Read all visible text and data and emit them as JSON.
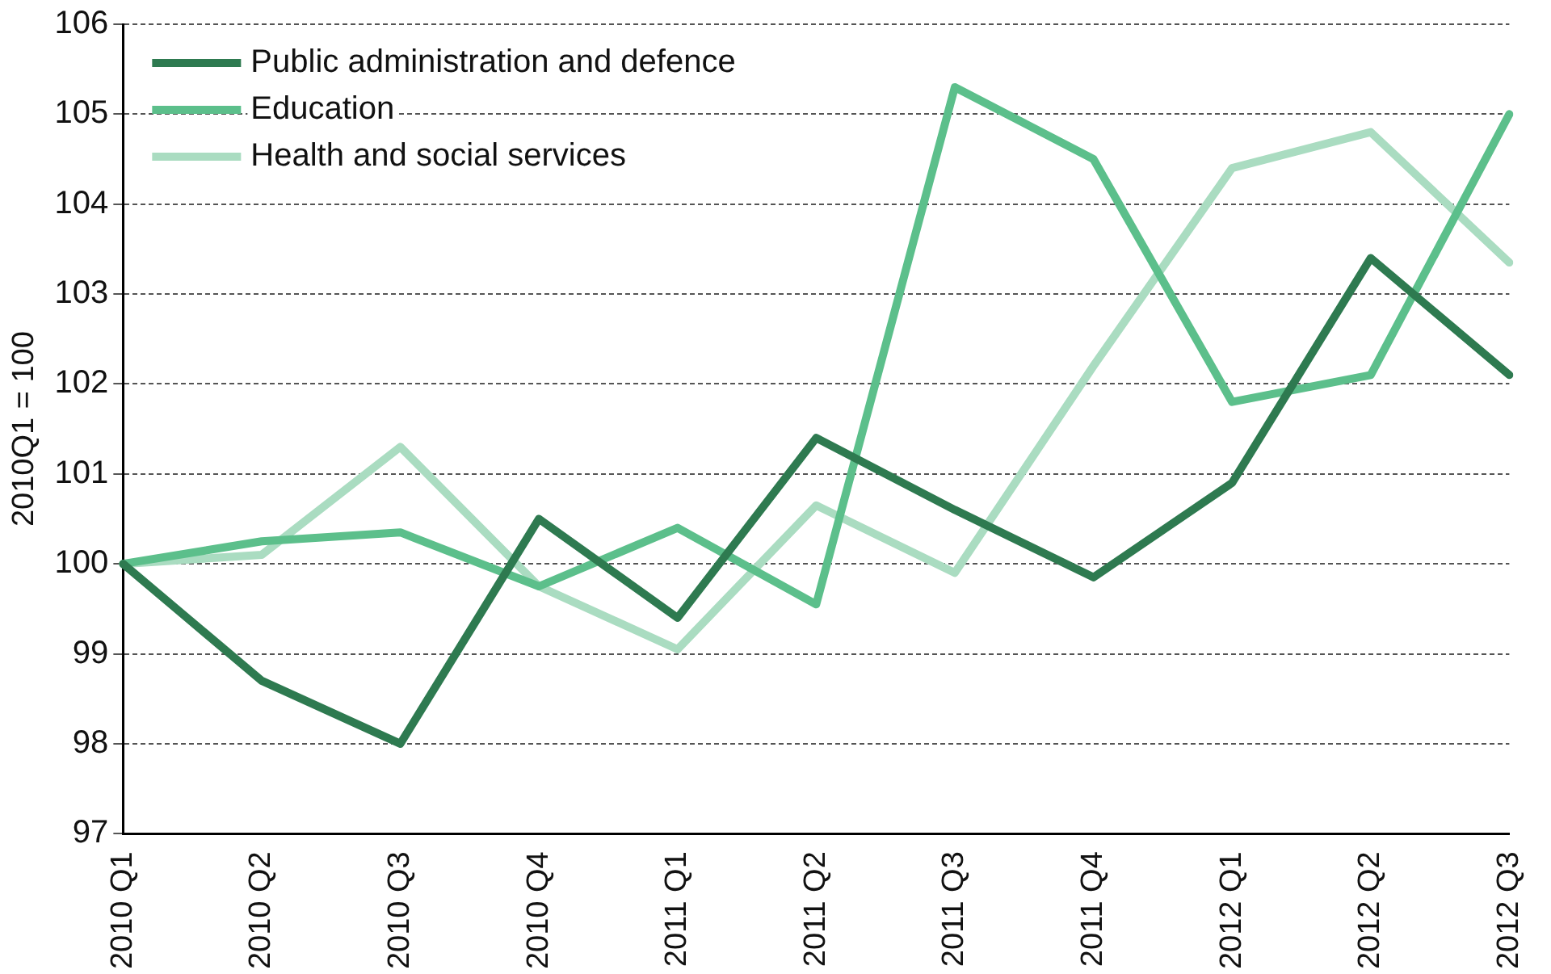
{
  "chart_data": {
    "type": "line",
    "ylabel": "2010Q1 = 100",
    "categories": [
      "2010 Q1",
      "2010 Q2",
      "2010 Q3",
      "2010 Q4",
      "2011 Q1",
      "2011 Q2",
      "2011 Q3",
      "2011 Q4",
      "2012 Q1",
      "2012 Q2",
      "2012 Q3"
    ],
    "series": [
      {
        "name": "Public administration and defence",
        "color": "#2e7a50",
        "values": [
          100,
          98.7,
          98.0,
          100.5,
          99.4,
          101.4,
          100.6,
          99.85,
          100.9,
          103.4,
          102.1
        ]
      },
      {
        "name": "Education",
        "color": "#5cbf8b",
        "values": [
          100,
          100.25,
          100.35,
          99.75,
          100.4,
          99.55,
          105.3,
          104.5,
          101.8,
          102.1,
          105.0
        ]
      },
      {
        "name": "Health and social services",
        "color": "#aadcc1",
        "values": [
          100,
          100.1,
          101.3,
          99.75,
          99.05,
          100.65,
          99.9,
          102.2,
          104.4,
          104.8,
          103.35
        ]
      }
    ],
    "ylim": [
      97,
      106
    ],
    "yticks": [
      97,
      98,
      99,
      100,
      101,
      102,
      103,
      104,
      105,
      106
    ],
    "grid": "y",
    "legend": "top left",
    "marker": "none",
    "line_style": "solid"
  }
}
